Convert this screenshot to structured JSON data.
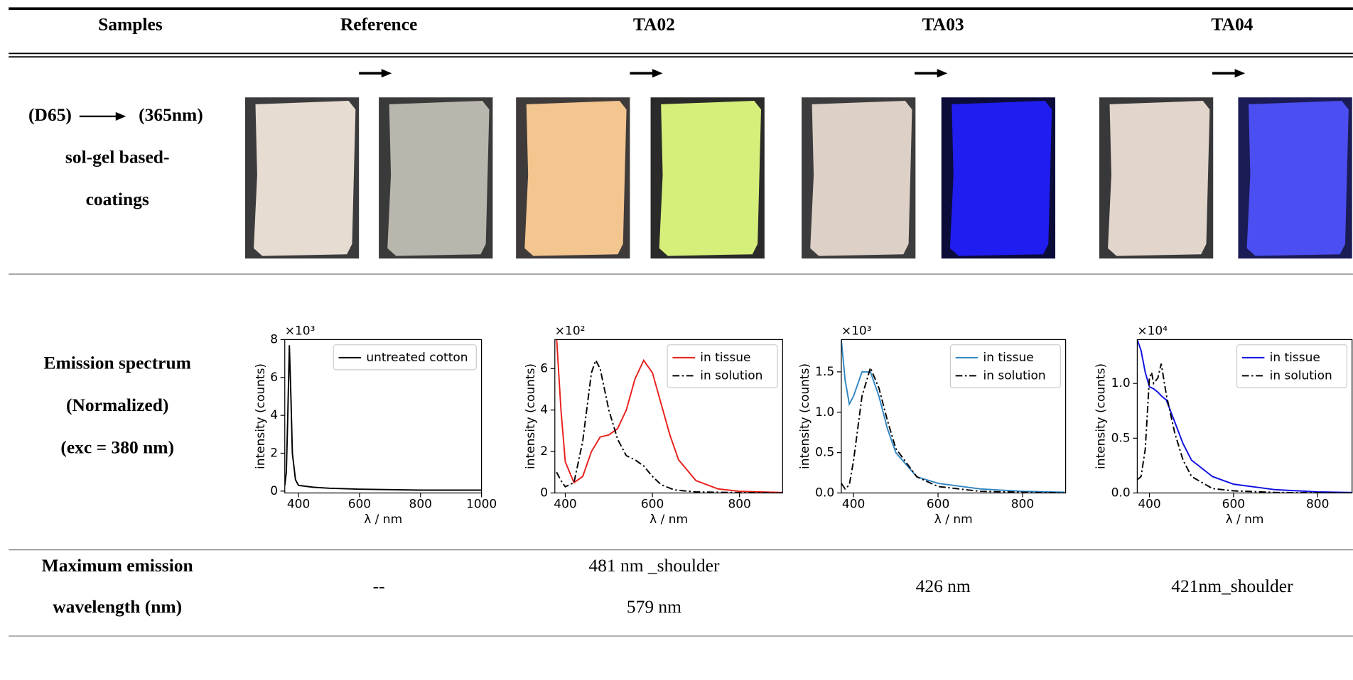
{
  "table": {
    "header": [
      "Samples",
      "Reference",
      "TA02",
      "TA03",
      "TA04"
    ],
    "rows": [
      {
        "label": [
          "(D65)",
          "(365nm)",
          "sol-gel based-",
          "coatings"
        ]
      },
      {
        "label": [
          "Emission spectrum",
          "(Normalized)",
          "(exc = 380 nm)"
        ],
        "charts": [
          {
            "type": "line",
            "multiplier": "×10³",
            "xlabel": "λ / nm",
            "ylabel": "intensity (counts)",
            "xlim": [
              355,
              1000
            ],
            "ylim": [
              -0.1,
              8
            ],
            "xticks": [
              400,
              600,
              800,
              1000
            ],
            "yticks": [
              0,
              2,
              4,
              6,
              8
            ],
            "legend": "upper right",
            "series": [
              {
                "name": "untreated cotton",
                "color": "#000000",
                "linestyle": "solid",
                "x": [
                  355,
                  360,
                  365,
                  370,
                  375,
                  380,
                  390,
                  400,
                  450,
                  500,
                  600,
                  800,
                  1000
                ],
                "values": [
                  0.3,
                  1,
                  4,
                  7.7,
                  5,
                  2,
                  0.6,
                  0.3,
                  0.2,
                  0.15,
                  0.1,
                  0.05,
                  0.05
                ]
              }
            ]
          },
          {
            "type": "line",
            "multiplier": "×10²",
            "xlabel": "λ / nm",
            "ylabel": "intensity (counts)",
            "xlim": [
              376,
              899
            ],
            "ylim": [
              0,
              7.4
            ],
            "xticks": [
              400,
              600,
              800
            ],
            "yticks": [
              0,
              2,
              4,
              6
            ],
            "legend": "upper right",
            "series": [
              {
                "name": "in tissue",
                "color": "#e8201c",
                "linestyle": "solid",
                "x": [
                  380,
                  390,
                  400,
                  420,
                  440,
                  460,
                  480,
                  500,
                  520,
                  540,
                  560,
                  580,
                  600,
                  620,
                  640,
                  660,
                  700,
                  750,
                  800,
                  900
                ],
                "values": [
                  7.5,
                  4,
                  1.5,
                  0.5,
                  0.8,
                  2,
                  2.7,
                  2.8,
                  3.1,
                  4,
                  5.5,
                  6.4,
                  5.8,
                  4.3,
                  2.8,
                  1.6,
                  0.6,
                  0.2,
                  0.08,
                  0.02
                ]
              },
              {
                "name": "in solution",
                "color": "#000000",
                "linestyle": "dashdot",
                "x": [
                  380,
                  390,
                  400,
                  420,
                  440,
                  460,
                  470,
                  480,
                  500,
                  520,
                  540,
                  560,
                  580,
                  600,
                  620,
                  650,
                  700,
                  800,
                  900
                ],
                "values": [
                  1,
                  0.6,
                  0.3,
                  0.5,
                  2.5,
                  5.8,
                  6.4,
                  6,
                  4,
                  2.6,
                  1.8,
                  1.6,
                  1.3,
                  0.8,
                  0.4,
                  0.15,
                  0.05,
                  0.02,
                  0
                ]
              }
            ]
          },
          {
            "type": "line",
            "multiplier": "×10³",
            "xlabel": "λ / nm",
            "ylabel": "intensity (counts)",
            "xlim": [
              371,
              902
            ],
            "ylim": [
              0,
              1.9
            ],
            "xticks": [
              400,
              600,
              800
            ],
            "yticks": [
              {
                "value": 0,
                "label": "0.0"
              },
              0.5,
              {
                "value": 1,
                "label": "1.0"
              },
              1.5
            ],
            "legend": "upper right",
            "series": [
              {
                "name": "in tissue",
                "color": "#2f86c3",
                "linestyle": "solid",
                "x": [
                  371,
                  380,
                  390,
                  400,
                  420,
                  440,
                  460,
                  480,
                  500,
                  550,
                  600,
                  700,
                  800,
                  900
                ],
                "values": [
                  1.9,
                  1.4,
                  1.1,
                  1.2,
                  1.5,
                  1.5,
                  1.2,
                  0.8,
                  0.5,
                  0.2,
                  0.12,
                  0.05,
                  0.02,
                  0.01
                ]
              },
              {
                "name": "in solution",
                "color": "#000000",
                "linestyle": "dashdot",
                "x": [
                  371,
                  380,
                  390,
                  400,
                  420,
                  440,
                  460,
                  480,
                  500,
                  550,
                  600,
                  700,
                  800,
                  900
                ],
                "values": [
                  0.12,
                  0.05,
                  0.1,
                  0.4,
                  1.2,
                  1.55,
                  1.3,
                  0.9,
                  0.55,
                  0.2,
                  0.08,
                  0.02,
                  0.01,
                  0
                ]
              }
            ]
          },
          {
            "type": "line",
            "multiplier": "×10⁴",
            "xlabel": "λ / nm",
            "ylabel": "intensity (counts)",
            "xlim": [
              371,
              882
            ],
            "ylim": [
              0,
              1.4
            ],
            "xticks": [
              400,
              600,
              800
            ],
            "yticks": [
              {
                "value": 0,
                "label": "0.0"
              },
              0.5,
              {
                "value": 1,
                "label": "1.0"
              }
            ],
            "legend": "upper right",
            "series": [
              {
                "name": "in tissue",
                "color": "#1010e0",
                "linestyle": "solid",
                "x": [
                  371,
                  380,
                  390,
                  400,
                  410,
                  420,
                  430,
                  440,
                  460,
                  480,
                  500,
                  550,
                  600,
                  700,
                  800,
                  882
                ],
                "values": [
                  1.4,
                  1.3,
                  1.1,
                  0.97,
                  0.95,
                  0.92,
                  0.88,
                  0.85,
                  0.65,
                  0.45,
                  0.3,
                  0.15,
                  0.08,
                  0.03,
                  0.01,
                  0.005
                ]
              },
              {
                "name": "in solution",
                "color": "#000000",
                "linestyle": "dashdot",
                "x": [
                  371,
                  380,
                  390,
                  400,
                  405,
                  410,
                  420,
                  428,
                  440,
                  460,
                  480,
                  500,
                  550,
                  600,
                  700,
                  882
                ],
                "values": [
                  0.12,
                  0.15,
                  0.4,
                  1.05,
                  1.1,
                  1.0,
                  1.05,
                  1.18,
                  0.9,
                  0.55,
                  0.3,
                  0.15,
                  0.04,
                  0.02,
                  0.005,
                  0
                ]
              }
            ]
          }
        ]
      },
      {
        "label": [
          "Maximum emission",
          "wavelength (nm)"
        ],
        "cells": [
          [
            "--"
          ],
          [
            "481 nm _shoulder",
            "579 nm"
          ],
          [
            "426 nm"
          ],
          [
            "421nm_shoulder"
          ]
        ]
      }
    ]
  }
}
